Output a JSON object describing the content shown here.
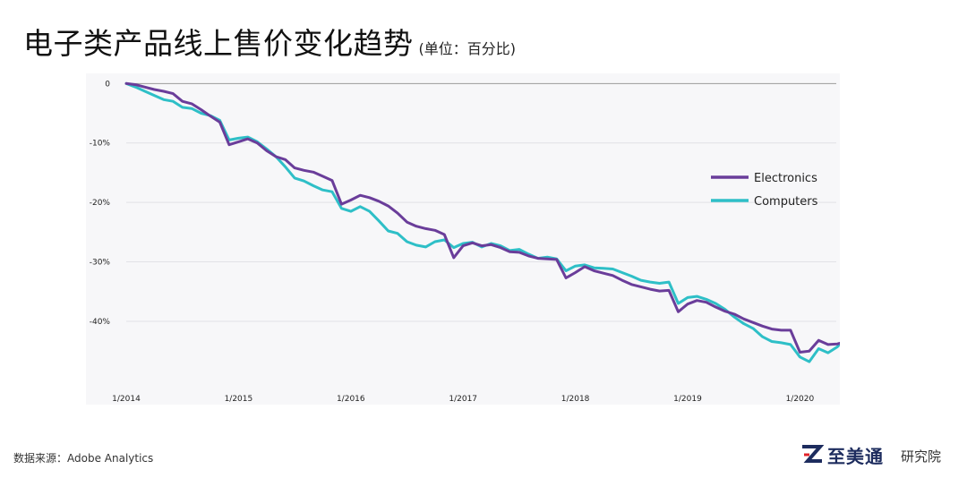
{
  "header": {
    "title": "电子类产品线上售价变化趋势",
    "unit": "(单位：百分比)"
  },
  "source": "数据来源：Adobe Analytics",
  "brand": {
    "name": "至美通",
    "sub": "研究院",
    "accent": "#1d2c5e",
    "mark_color": "#e0232a"
  },
  "chart_data": {
    "type": "line",
    "x_start": "1/2014",
    "x_step": "1 month",
    "x_ticks": [
      "1/2014",
      "1/2015",
      "1/2016",
      "1/2017",
      "1/2018",
      "1/2019",
      "1/2020"
    ],
    "y_ticks": [
      "0",
      "-10%",
      "-20%",
      "-30%",
      "-40%"
    ],
    "y_tick_values": [
      0,
      -10,
      -20,
      -30,
      -40
    ],
    "ylim": [
      -51,
      0.5
    ],
    "grid": "horizontal",
    "legend": "right",
    "series": [
      {
        "name": "Electronics",
        "color": "#6a3d9a",
        "values": [
          0,
          -0.2,
          -0.6,
          -1.0,
          -1.3,
          -1.7,
          -3.0,
          -3.4,
          -4.4,
          -5.5,
          -6.5,
          -10.3,
          -9.8,
          -9.3,
          -10.0,
          -11.3,
          -12.3,
          -12.8,
          -14.2,
          -14.6,
          -14.9,
          -15.6,
          -16.3,
          -20.3,
          -19.6,
          -18.8,
          -19.2,
          -19.8,
          -20.6,
          -21.8,
          -23.3,
          -24.0,
          -24.4,
          -24.7,
          -25.4,
          -29.3,
          -27.3,
          -26.8,
          -27.3,
          -27.1,
          -27.6,
          -28.3,
          -28.4,
          -29.0,
          -29.4,
          -29.5,
          -29.6,
          -32.7,
          -31.8,
          -30.8,
          -31.5,
          -31.9,
          -32.3,
          -33.1,
          -33.8,
          -34.2,
          -34.6,
          -34.9,
          -34.8,
          -38.4,
          -37.1,
          -36.5,
          -36.8,
          -37.6,
          -38.3,
          -38.8,
          -39.6,
          -40.2,
          -40.8,
          -41.3,
          -41.5,
          -41.5,
          -45.2,
          -45.0,
          -43.2,
          -43.9,
          -43.8,
          -43.4
        ],
        "note": "monthly values from 1/2014 to 6/2020"
      },
      {
        "name": "Computers",
        "color": "#2ebfc7",
        "values": [
          0,
          -0.6,
          -1.3,
          -2.0,
          -2.7,
          -3.0,
          -4.0,
          -4.2,
          -5.0,
          -5.4,
          -6.2,
          -9.5,
          -9.2,
          -9.0,
          -9.8,
          -11.0,
          -12.3,
          -14.0,
          -15.9,
          -16.4,
          -17.2,
          -17.9,
          -18.2,
          -21.0,
          -21.5,
          -20.7,
          -21.5,
          -23.1,
          -24.8,
          -25.2,
          -26.6,
          -27.2,
          -27.5,
          -26.6,
          -26.3,
          -27.6,
          -26.9,
          -26.7,
          -27.5,
          -26.9,
          -27.3,
          -28.1,
          -27.9,
          -28.7,
          -29.4,
          -29.2,
          -29.5,
          -31.5,
          -30.7,
          -30.5,
          -31.0,
          -31.1,
          -31.2,
          -31.8,
          -32.4,
          -33.1,
          -33.4,
          -33.6,
          -33.4,
          -37.0,
          -36.0,
          -35.8,
          -36.3,
          -37.0,
          -38.0,
          -39.3,
          -40.4,
          -41.2,
          -42.6,
          -43.4,
          -43.6,
          -43.9,
          -46.0,
          -46.8,
          -44.6,
          -45.3,
          -44.3,
          -42.6
        ]
      }
    ]
  }
}
